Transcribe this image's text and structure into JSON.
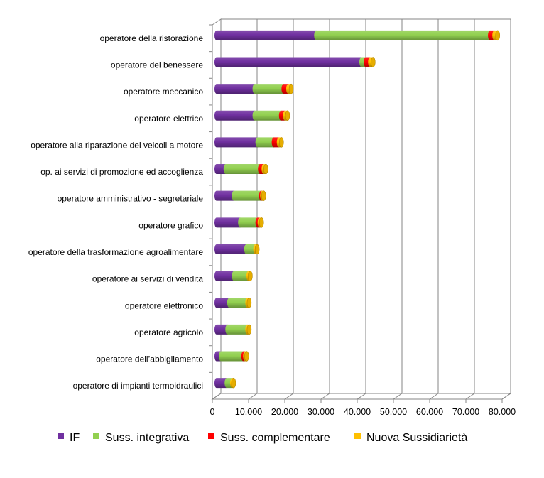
{
  "chart_data": {
    "type": "bar",
    "orientation": "horizontal",
    "stacked": true,
    "style": "3d-cylinder",
    "categories": [
      "operatore della ristorazione",
      "operatore del benessere",
      "operatore meccanico",
      "operatore elettrico",
      "operatore alla riparazione dei veicoli a motore",
      "op. ai servizi di promozione ed accoglienza",
      "operatore amministrativo - segretariale",
      "operatore grafico",
      "operatore della trasformazione agroalimentare",
      "operatore ai servizi di vendita",
      "operatore elettronico",
      "operatore agricolo",
      "operatore dell’abbigliamento",
      "operatore di impianti termoidraulici"
    ],
    "series": [
      {
        "name": "IF",
        "color": "#7030A0",
        "values": [
          27500,
          40000,
          10500,
          10500,
          11300,
          2500,
          4800,
          6500,
          8200,
          4800,
          3500,
          3000,
          1200,
          2800
        ]
      },
      {
        "name": "Suss. integrativa",
        "color": "#92D050",
        "values": [
          48000,
          1200,
          8000,
          7300,
          4500,
          9500,
          7500,
          4800,
          2500,
          4000,
          5000,
          5500,
          6200,
          1500
        ]
      },
      {
        "name": "Suss. complementare",
        "color": "#FF0000",
        "values": [
          1200,
          1200,
          1300,
          1100,
          1400,
          1000,
          300,
          600,
          0,
          0,
          0,
          0,
          500,
          0
        ]
      },
      {
        "name": "Nuova Sussidiarietà",
        "color": "#FFC000",
        "values": [
          900,
          800,
          800,
          700,
          700,
          600,
          400,
          500,
          500,
          500,
          500,
          500,
          400,
          400
        ]
      }
    ],
    "xlim": [
      0,
      80000
    ],
    "xticks": [
      "0",
      "10.000",
      "20.000",
      "30.000",
      "40.000",
      "50.000",
      "60.000",
      "70.000",
      "80.000"
    ],
    "grid": true,
    "legend_position": "bottom"
  }
}
